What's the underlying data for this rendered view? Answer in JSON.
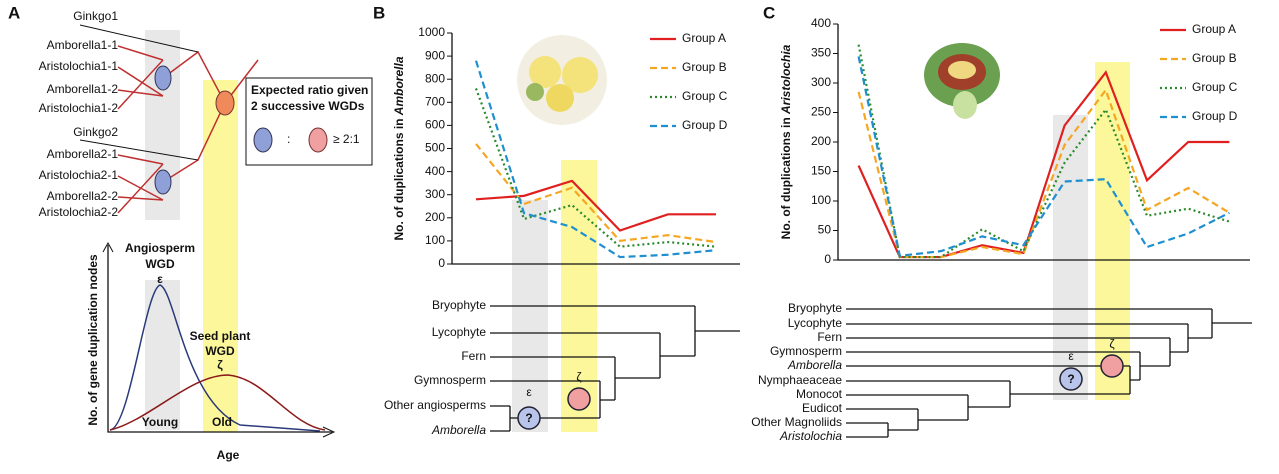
{
  "panel_a": {
    "label": "A",
    "leaves": [
      "Ginkgo1",
      "Amborella1-1",
      "Aristolochia1-1",
      "Amborella1-2",
      "Aristolochia1-2",
      "Ginkgo2",
      "Amborella2-1",
      "Aristolochia2-1",
      "Amborella2-2",
      "Aristolochia2-2"
    ],
    "box": {
      "title": [
        "Expected ratio given",
        "2 successive WGDs"
      ],
      "separator": ":",
      "ratio": "≥ 2:1"
    },
    "curve_plot": {
      "ylabel": "No. of gene duplication nodes",
      "xlabel": "Age",
      "peaks": [
        {
          "name": [
            "Angiosperm",
            "WGD"
          ],
          "symbol": "ε",
          "period": "Young"
        },
        {
          "name": [
            "Seed plant",
            "WGD"
          ],
          "symbol": "ζ",
          "period": "Old"
        }
      ]
    }
  },
  "chart_data": [
    {
      "panel": "B",
      "type": "line",
      "ylabel": [
        "No. of duplications in ",
        "Amborella"
      ],
      "categories": [
        null,
        null,
        null,
        null,
        null,
        null
      ],
      "series": [
        {
          "name": "Group A",
          "color": "#e02020",
          "dash": "solid",
          "values": [
            280,
            295,
            360,
            145,
            215,
            215
          ]
        },
        {
          "name": "Group B",
          "color": "#f5a623",
          "dash": "dashed",
          "values": [
            520,
            260,
            330,
            100,
            125,
            95
          ]
        },
        {
          "name": "Group C",
          "color": "#2a8a2a",
          "dash": "dotted",
          "values": [
            760,
            195,
            255,
            75,
            95,
            75
          ]
        },
        {
          "name": "Group D",
          "color": "#1f8fd0",
          "dash": "dashed",
          "values": [
            880,
            220,
            160,
            30,
            40,
            60
          ]
        }
      ],
      "ylim": [
        0,
        1000
      ],
      "yticks": [
        0,
        100,
        200,
        300,
        400,
        500,
        600,
        700,
        800,
        900,
        1000
      ],
      "legend": "upper right"
    },
    {
      "panel": "C",
      "type": "line",
      "ylabel": [
        "No. of duplications in ",
        "Aristolochia"
      ],
      "categories": [
        null,
        null,
        null,
        null,
        null,
        null,
        null,
        null,
        null,
        null
      ],
      "series": [
        {
          "name": "Group A",
          "color": "#e02020",
          "dash": "solid",
          "values": [
            160,
            5,
            5,
            25,
            12,
            228,
            318,
            135,
            200,
            200
          ]
        },
        {
          "name": "Group B",
          "color": "#f5a623",
          "dash": "dashed",
          "values": [
            285,
            5,
            5,
            22,
            10,
            195,
            288,
            85,
            122,
            80
          ]
        },
        {
          "name": "Group C",
          "color": "#2a8a2a",
          "dash": "dotted",
          "values": [
            365,
            5,
            5,
            52,
            15,
            165,
            255,
            75,
            87,
            65
          ]
        },
        {
          "name": "Group D",
          "color": "#1f8fd0",
          "dash": "dashed",
          "values": [
            345,
            7,
            15,
            40,
            25,
            133,
            137,
            22,
            45,
            80
          ]
        }
      ],
      "ylim": [
        0,
        400
      ],
      "yticks": [
        0,
        50,
        100,
        150,
        200,
        250,
        300,
        350,
        400
      ],
      "legend": "upper right"
    }
  ],
  "trees": [
    {
      "leaves": [
        {
          "text": "Bryophyte",
          "italic": false
        },
        {
          "text": "Lycophyte",
          "italic": false
        },
        {
          "text": "Fern",
          "italic": false
        },
        {
          "text": "Gymnosperm",
          "italic": false
        },
        {
          "text": "Other angiosperms",
          "italic": false
        },
        {
          "text": "Amborella",
          "italic": true
        }
      ],
      "events": [
        {
          "symbol": "ε",
          "mark": "?"
        },
        {
          "symbol": "ζ"
        }
      ]
    },
    {
      "leaves": [
        {
          "text": "Bryophyte",
          "italic": false
        },
        {
          "text": "Lycophyte",
          "italic": false
        },
        {
          "text": "Fern",
          "italic": false
        },
        {
          "text": "Gymnosperm",
          "italic": false
        },
        {
          "text": "Amborella",
          "italic": true
        },
        {
          "text": "Nymphaeaceae",
          "italic": false
        },
        {
          "text": "Monocot",
          "italic": false
        },
        {
          "text": "Eudicot",
          "italic": false
        },
        {
          "text": "Other Magnoliids",
          "italic": false
        },
        {
          "text": "Aristolochia",
          "italic": true
        }
      ],
      "events": [
        {
          "symbol": "ε",
          "mark": "?"
        },
        {
          "symbol": "ζ"
        }
      ]
    }
  ]
}
